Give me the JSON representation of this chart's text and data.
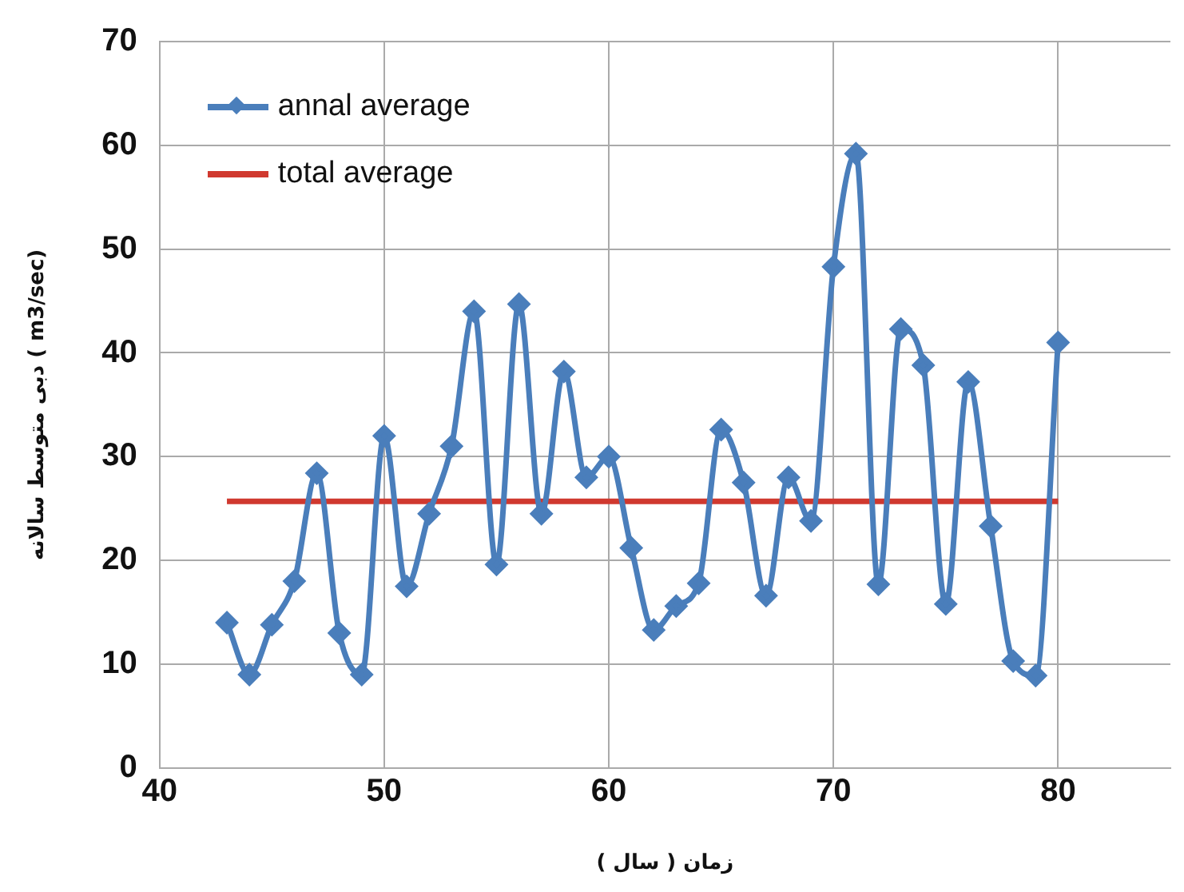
{
  "chart_data": {
    "type": "line",
    "xlabel": "زمان ( سال )",
    "ylabel": "دبی متوسط سالانه ( m3/sec)",
    "x": [
      43,
      44,
      45,
      46,
      47,
      48,
      49,
      50,
      51,
      52,
      53,
      54,
      55,
      56,
      57,
      58,
      59,
      60,
      61,
      62,
      63,
      64,
      65,
      66,
      67,
      68,
      69,
      70,
      71,
      72,
      73,
      74,
      75,
      76,
      77,
      78,
      79,
      80
    ],
    "series": [
      {
        "name": "annal average",
        "color": "#4a7ebb",
        "marker": "diamond",
        "values": [
          14,
          9,
          13.8,
          18,
          28.4,
          13,
          9,
          32,
          17.5,
          24.5,
          31,
          44,
          19.6,
          44.7,
          24.5,
          38.2,
          28,
          30,
          21.2,
          13.3,
          15.6,
          17.8,
          32.6,
          27.5,
          16.6,
          28,
          23.8,
          48.3,
          59.2,
          17.7,
          42.3,
          38.8,
          15.8,
          37.2,
          23.3,
          10.3,
          8.9,
          41
        ]
      },
      {
        "name": "total average",
        "color": "#d0392f",
        "marker": "none",
        "x": [
          43,
          80
        ],
        "values": [
          25.7,
          25.7
        ]
      }
    ],
    "xlim": [
      40,
      85
    ],
    "xticks": [
      40,
      50,
      60,
      70,
      80
    ],
    "ylim": [
      0,
      70
    ],
    "yticks": [
      0,
      10,
      20,
      30,
      40,
      50,
      60,
      70
    ],
    "grid": true,
    "legend": "top left"
  }
}
